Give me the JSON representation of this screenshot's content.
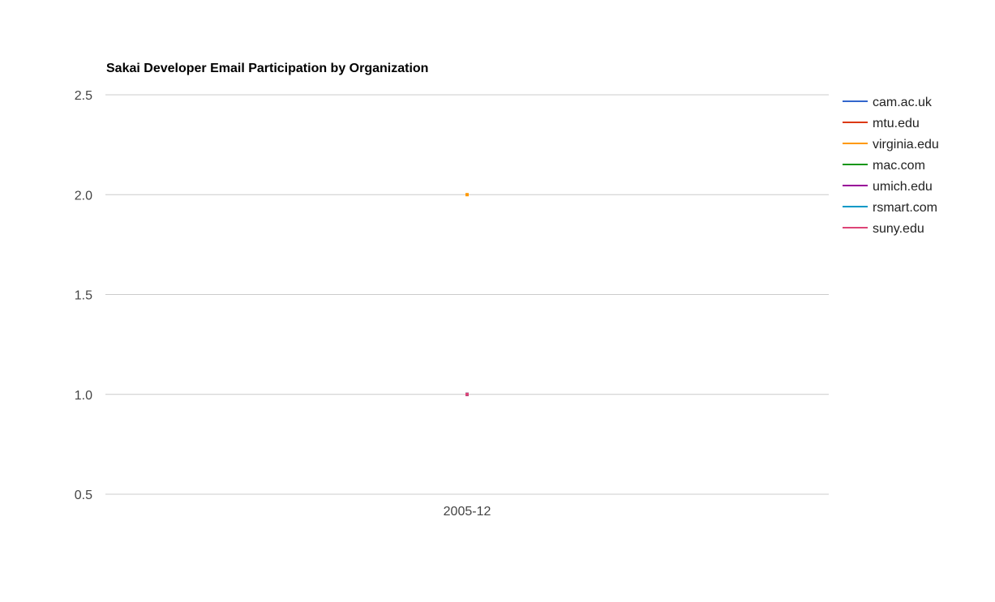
{
  "chart_data": {
    "type": "line",
    "title": "Sakai Developer Email Participation by Organization",
    "xlabel": "",
    "ylabel": "",
    "categories": [
      "2005-12"
    ],
    "ylim": [
      0.5,
      2.5
    ],
    "yticks": [
      "0.5",
      "1.0",
      "1.5",
      "2.0",
      "2.5"
    ],
    "grid": true,
    "legend_position": "right",
    "series": [
      {
        "name": "cam.ac.uk",
        "color": "#3366cc",
        "values": [
          1
        ]
      },
      {
        "name": "mtu.edu",
        "color": "#dc3912",
        "values": [
          1
        ]
      },
      {
        "name": "virginia.edu",
        "color": "#ff9900",
        "values": [
          2
        ]
      },
      {
        "name": "mac.com",
        "color": "#109618",
        "values": [
          1
        ]
      },
      {
        "name": "umich.edu",
        "color": "#990099",
        "values": [
          1
        ]
      },
      {
        "name": "rsmart.com",
        "color": "#0099c6",
        "values": [
          1
        ]
      },
      {
        "name": "suny.edu",
        "color": "#dd4477",
        "values": [
          1
        ]
      }
    ]
  }
}
